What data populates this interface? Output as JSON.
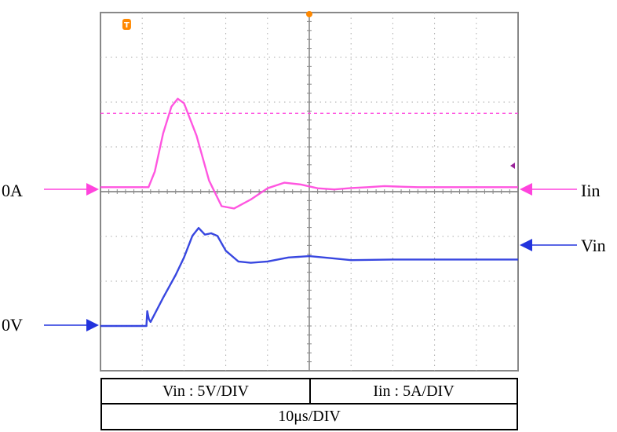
{
  "chart_data": {
    "type": "line",
    "title": "",
    "grid": true,
    "grid_divisions": {
      "x": 10,
      "y": 8
    },
    "x_scale": "10µs/DIV",
    "series": [
      {
        "name": "Iin",
        "color": "#ff44dd",
        "reference": "0A",
        "scale": "Iin : 5A/DIV",
        "units_per_div": 5,
        "offset_div": 4.1,
        "points": [
          [
            0,
            0
          ],
          [
            1.15,
            0
          ],
          [
            1.3,
            0.7
          ],
          [
            1.5,
            2.4
          ],
          [
            1.7,
            3.6
          ],
          [
            1.85,
            3.95
          ],
          [
            2.0,
            3.75
          ],
          [
            2.3,
            2.3
          ],
          [
            2.6,
            0.3
          ],
          [
            2.9,
            -0.85
          ],
          [
            3.2,
            -0.95
          ],
          [
            3.6,
            -0.55
          ],
          [
            4.0,
            -0.05
          ],
          [
            4.4,
            0.2
          ],
          [
            4.8,
            0.12
          ],
          [
            5.2,
            -0.05
          ],
          [
            5.6,
            -0.1
          ],
          [
            6.0,
            -0.04
          ],
          [
            6.4,
            0
          ],
          [
            6.8,
            0.05
          ],
          [
            7.2,
            0.02
          ],
          [
            7.6,
            0
          ],
          [
            8.0,
            0
          ],
          [
            10,
            0
          ]
        ]
      },
      {
        "name": "Vin",
        "color": "#2233dd",
        "reference": "0V",
        "scale": "Vin : 5V/DIV",
        "units_per_div": 5,
        "offset_div": 1.0,
        "points": [
          [
            0,
            0
          ],
          [
            1.1,
            0
          ],
          [
            1.12,
            1.1
          ],
          [
            1.16,
            0.5
          ],
          [
            1.2,
            0.3
          ],
          [
            1.5,
            2.1
          ],
          [
            1.8,
            3.8
          ],
          [
            2.0,
            5.1
          ],
          [
            2.2,
            6.7
          ],
          [
            2.35,
            7.3
          ],
          [
            2.5,
            6.8
          ],
          [
            2.65,
            6.9
          ],
          [
            2.8,
            6.7
          ],
          [
            3.0,
            5.6
          ],
          [
            3.3,
            4.8
          ],
          [
            3.6,
            4.7
          ],
          [
            4.0,
            4.8
          ],
          [
            4.5,
            5.1
          ],
          [
            5.0,
            5.2
          ],
          [
            5.5,
            5.05
          ],
          [
            6.0,
            4.9
          ],
          [
            7.0,
            4.95
          ],
          [
            8.0,
            4.95
          ],
          [
            9.0,
            4.95
          ],
          [
            10,
            4.95
          ]
        ]
      }
    ],
    "trigger_level_div": 5.75,
    "trigger_marker": "T"
  },
  "labels": {
    "left_iin": "0A",
    "left_vin": "0V",
    "right_iin": "Iin",
    "right_vin": "Vin"
  },
  "scale_box": {
    "vin": "Vin : 5V/DIV",
    "iin": "Iin : 5A/DIV",
    "time": "10μs/DIV"
  },
  "colors": {
    "iin": "#ff44dd",
    "vin": "#2233dd",
    "grid": "#888888",
    "trigger_marker": "#ff8800"
  }
}
